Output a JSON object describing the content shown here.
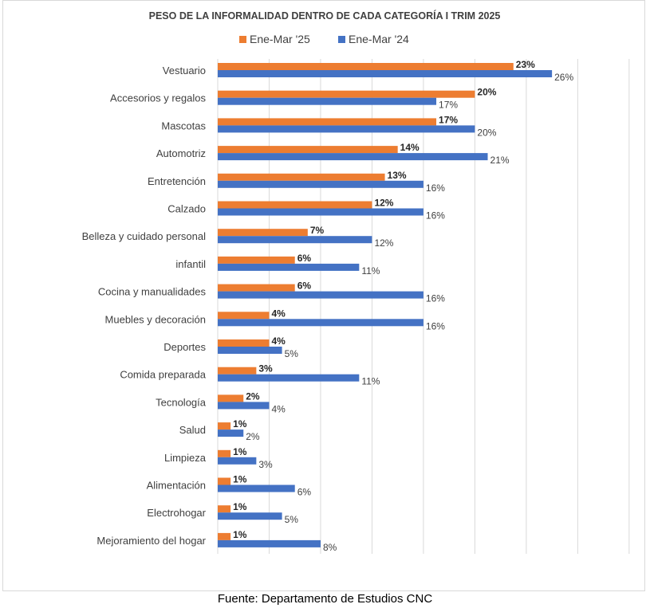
{
  "source": "Fuente: Departamento de Estudios CNC",
  "colors": {
    "series_2025": "#ED7D31",
    "series_2024": "#4472C4",
    "grid": "#d9d9d9",
    "text": "#404040"
  },
  "chart_data": {
    "type": "bar",
    "orientation": "horizontal",
    "title": "PESO DE LA INFORMALIDAD DENTRO DE CADA CATEGORÍA I TRIM 2025",
    "legend_position": "top",
    "grid": true,
    "xlim": [
      0,
      0.4
    ],
    "categories": [
      "Vestuario",
      "Accesorios y regalos",
      "Mascotas",
      "Automotriz",
      "Entretención",
      "Calzado",
      "Belleza y cuidado personal",
      "infantil",
      "Cocina y manualidades",
      "Muebles y decoración",
      "Deportes",
      "Comida preparada",
      "Tecnología",
      "Salud",
      "Limpieza",
      "Alimentación",
      "Electrohogar",
      "Mejoramiento del hogar"
    ],
    "series": [
      {
        "name": "Ene-Mar '25",
        "color": "#ED7D31",
        "values": [
          0.23,
          0.2,
          0.17,
          0.14,
          0.13,
          0.12,
          0.07,
          0.06,
          0.06,
          0.04,
          0.04,
          0.03,
          0.02,
          0.01,
          0.01,
          0.01,
          0.01,
          0.01
        ],
        "labels": [
          "23%",
          "20%",
          "17%",
          "14%",
          "13%",
          "12%",
          "7%",
          "6%",
          "6%",
          "4%",
          "4%",
          "3%",
          "2%",
          "1%",
          "1%",
          "1%",
          "1%",
          "1%"
        ]
      },
      {
        "name": "Ene-Mar '24",
        "color": "#4472C4",
        "values": [
          0.26,
          0.17,
          0.2,
          0.21,
          0.16,
          0.16,
          0.12,
          0.11,
          0.16,
          0.16,
          0.05,
          0.11,
          0.04,
          0.02,
          0.03,
          0.06,
          0.05,
          0.08
        ],
        "labels": [
          "26%",
          "17%",
          "20%",
          "21%",
          "16%",
          "16%",
          "12%",
          "11%",
          "16%",
          "16%",
          "5%",
          "11%",
          "4%",
          "2%",
          "3%",
          "6%",
          "5%",
          "8%"
        ]
      }
    ]
  }
}
